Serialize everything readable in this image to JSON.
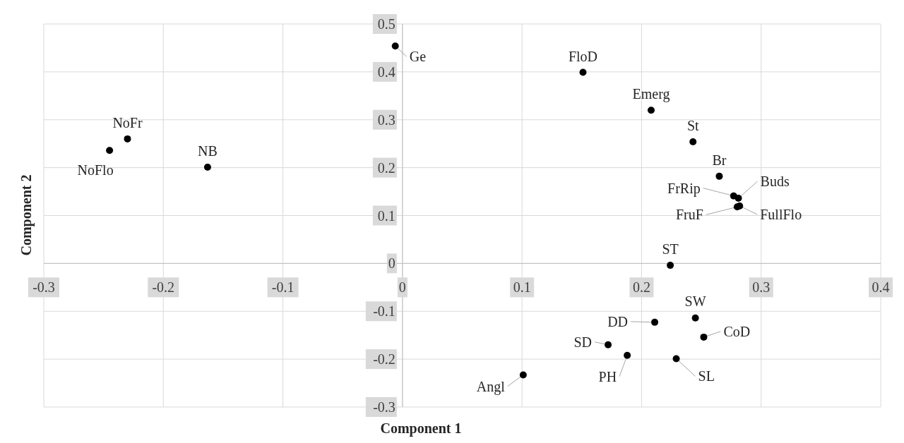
{
  "chart_data": {
    "type": "scatter",
    "xlabel": "Component 1",
    "ylabel": "Component 2",
    "x": [
      -0.006,
      0.151,
      0.208,
      0.243,
      0.265,
      0.277,
      0.281,
      0.28,
      0.282,
      0.224,
      0.245,
      0.211,
      0.252,
      0.172,
      0.188,
      0.229,
      0.101,
      -0.23,
      -0.245,
      -0.163
    ],
    "series": [
      {
        "color": "#000000",
        "values": [
          0.454,
          0.399,
          0.32,
          0.254,
          0.182,
          0.141,
          0.136,
          0.118,
          0.12,
          -0.004,
          -0.114,
          -0.123,
          -0.154,
          -0.17,
          -0.192,
          -0.199,
          -0.233,
          0.26,
          0.236,
          0.201
        ]
      }
    ],
    "xlim": [
      -0.3,
      0.4
    ],
    "ylim": [
      -0.3,
      0.5
    ],
    "xticks": [
      -0.3,
      -0.2,
      -0.1,
      0,
      0.1,
      0.2,
      0.3,
      0.4
    ],
    "yticks": [
      -0.3,
      -0.2,
      -0.1,
      0,
      0.1,
      0.2,
      0.3,
      0.4,
      0.5
    ],
    "grid": true,
    "marker": "circle",
    "annotations": [
      {
        "text": "Ge",
        "x": -0.006,
        "y": 0.454
      },
      {
        "text": "FloD",
        "x": 0.151,
        "y": 0.399
      },
      {
        "text": "Emerg",
        "x": 0.208,
        "y": 0.32
      },
      {
        "text": "St",
        "x": 0.243,
        "y": 0.254
      },
      {
        "text": "Br",
        "x": 0.265,
        "y": 0.182
      },
      {
        "text": "FrRip",
        "x": 0.277,
        "y": 0.141
      },
      {
        "text": "Buds",
        "x": 0.281,
        "y": 0.136
      },
      {
        "text": "FruF",
        "x": 0.28,
        "y": 0.118
      },
      {
        "text": "FullFlo",
        "x": 0.282,
        "y": 0.12
      },
      {
        "text": "ST",
        "x": 0.224,
        "y": -0.004
      },
      {
        "text": "SW",
        "x": 0.245,
        "y": -0.114
      },
      {
        "text": "DD",
        "x": 0.211,
        "y": -0.123
      },
      {
        "text": "CoD",
        "x": 0.252,
        "y": -0.154
      },
      {
        "text": "SD",
        "x": 0.172,
        "y": -0.17
      },
      {
        "text": "PH",
        "x": 0.188,
        "y": -0.192
      },
      {
        "text": "SL",
        "x": 0.229,
        "y": -0.199
      },
      {
        "text": "Angl",
        "x": 0.101,
        "y": -0.233
      },
      {
        "text": "NoFr",
        "x": -0.23,
        "y": 0.26
      },
      {
        "text": "NoFlo",
        "x": -0.245,
        "y": 0.236
      },
      {
        "text": "NB",
        "x": -0.163,
        "y": 0.201
      }
    ]
  }
}
